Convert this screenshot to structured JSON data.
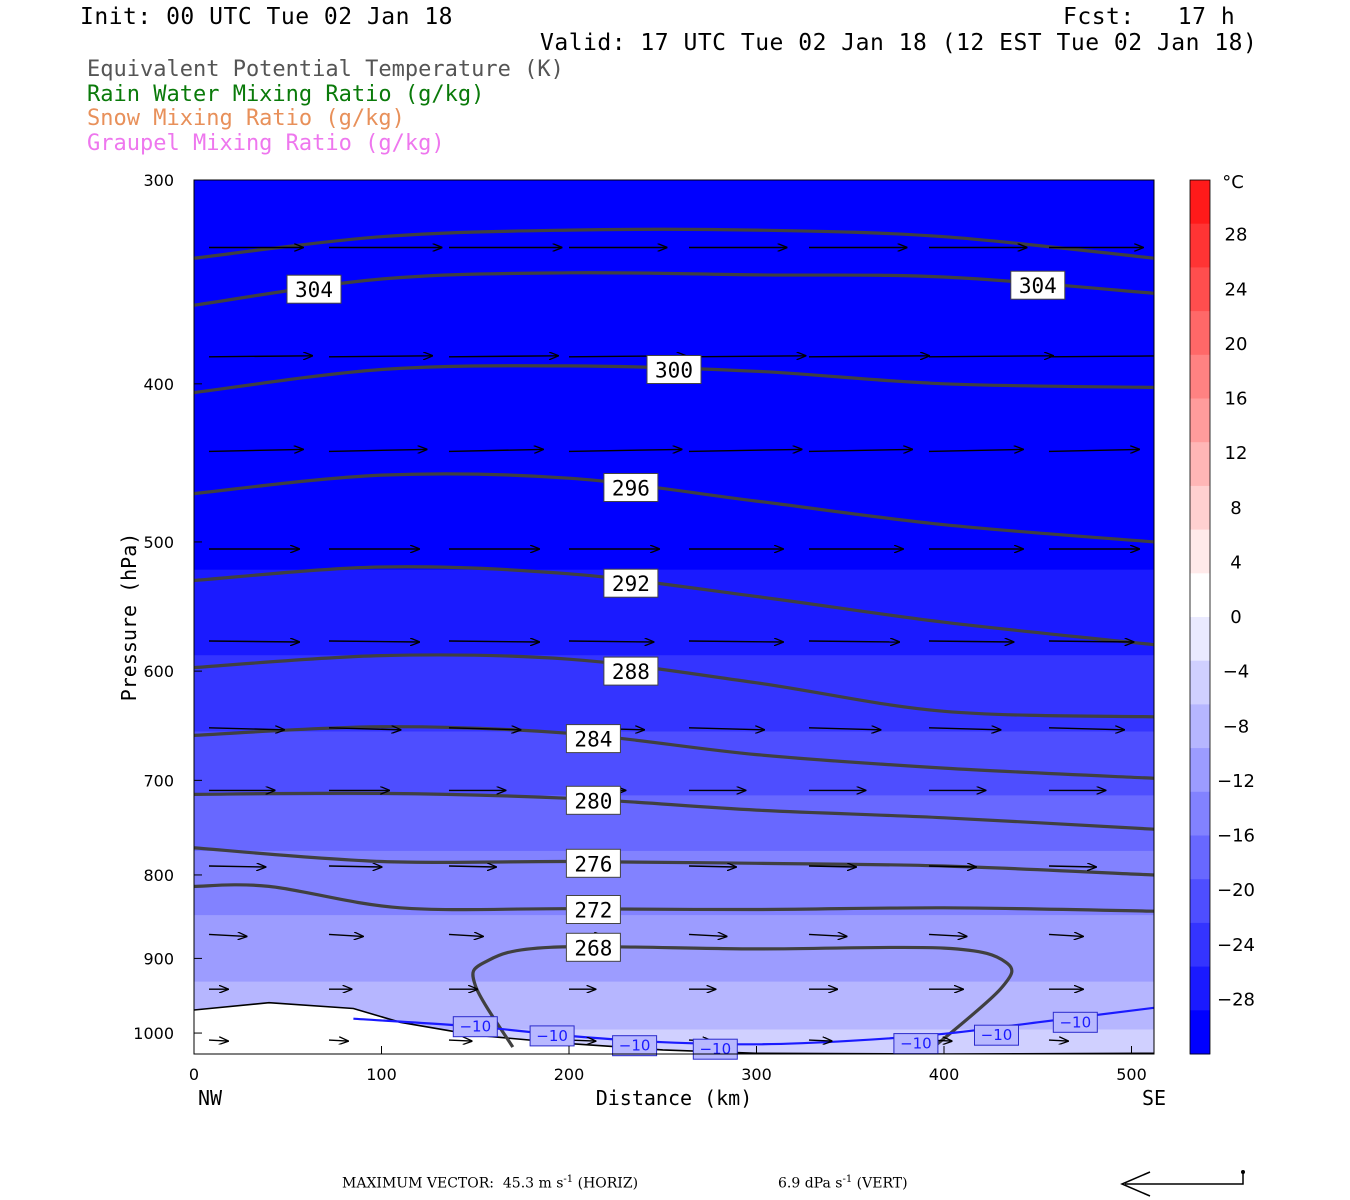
{
  "header": {
    "init": "Init: 00 UTC Tue 02 Jan 18",
    "fcst": "Fcst:   17 h",
    "valid": "Valid: 17 UTC Tue 02 Jan 18 (12 EST Tue 02 Jan 18)"
  },
  "legend": {
    "theta_e": "Equivalent Potential Temperature (K)",
    "rain": "Rain Water Mixing Ratio (g/kg)",
    "snow": "Snow Mixing Ratio (g/kg)",
    "graupel": "Graupel Mixing Ratio (g/kg)"
  },
  "footer": {
    "horiz_prefix": "MAXIMUM VECTOR:  45.3 m s",
    "horiz_sup": "-1",
    "horiz_suffix": " (HORIZ)",
    "vert_prefix": "6.9 dPa s",
    "vert_sup": "-1",
    "vert_suffix": " (VERT)"
  },
  "colors": {
    "theta_e_line": "#404040",
    "isotherm_line": "#1a1aff",
    "terrain_line": "#000000",
    "contour_label_bg": "#ffffff"
  },
  "chart_data": {
    "type": "cross-section",
    "xlabel": "Distance (km)",
    "ylabel": "Pressure (hPa)",
    "xlim": [
      0,
      512
    ],
    "ylim_pressure": [
      1030,
      300
    ],
    "y_scale": "log-pressure",
    "x_ticks": [
      0,
      100,
      200,
      300,
      400,
      500
    ],
    "y_ticks": [
      300,
      400,
      500,
      600,
      700,
      800,
      900,
      1000
    ],
    "x_end_labels": {
      "left": "NW",
      "right": "SE"
    },
    "colorbar": {
      "unit": "°C",
      "ticks": [
        "28",
        "24",
        "20",
        "16",
        "12",
        "8",
        "4",
        "0",
        "−4",
        "−8",
        "−12",
        "−16",
        "−20",
        "−24",
        "−28"
      ],
      "tick_values": [
        28,
        24,
        20,
        16,
        12,
        8,
        4,
        0,
        -4,
        -8,
        -12,
        -16,
        -20,
        -24,
        -28
      ],
      "range": [
        -32,
        32
      ],
      "colors_top_to_bottom": [
        "#ff1a1a",
        "#ff3434",
        "#ff4e4e",
        "#ff6868",
        "#ff8282",
        "#ff9c9c",
        "#ffb6b6",
        "#ffd0d0",
        "#ffeaea",
        "#ffffff",
        "#eaeaff",
        "#d0d0ff",
        "#b6b6ff",
        "#9c9cff",
        "#8282ff",
        "#6868ff",
        "#4e4eff",
        "#3434ff",
        "#1a1aff",
        "#0000ff"
      ]
    },
    "temperature_fill_rows": [
      {
        "p": 300,
        "t": -40
      },
      {
        "p": 450,
        "t": -33
      },
      {
        "p": 520,
        "t": -29
      },
      {
        "p": 600,
        "t": -25
      },
      {
        "p": 680,
        "t": -21
      },
      {
        "p": 750,
        "t": -17
      },
      {
        "p": 820,
        "t": -14
      },
      {
        "p": 900,
        "t": -11
      },
      {
        "p": 960,
        "t": -8
      },
      {
        "p": 1030,
        "t": -5
      }
    ],
    "theta_e_contours": [
      {
        "value": "304",
        "points": [
          [
            0,
            358
          ],
          [
            100,
            345
          ],
          [
            200,
            342
          ],
          [
            300,
            343
          ],
          [
            400,
            344
          ],
          [
            512,
            352
          ]
        ],
        "labels": [
          [
            64,
            350
          ],
          [
            450,
            348
          ]
        ]
      },
      {
        "value": "",
        "points": [
          [
            0,
            335
          ],
          [
            100,
            325
          ],
          [
            200,
            322
          ],
          [
            300,
            322
          ],
          [
            400,
            325
          ],
          [
            512,
            335
          ]
        ],
        "labels": []
      },
      {
        "value": "300",
        "points": [
          [
            0,
            405
          ],
          [
            100,
            392
          ],
          [
            200,
            390
          ],
          [
            300,
            393
          ],
          [
            400,
            400
          ],
          [
            512,
            402
          ]
        ],
        "labels": [
          [
            256,
            392
          ]
        ]
      },
      {
        "value": "296",
        "points": [
          [
            0,
            467
          ],
          [
            100,
            455
          ],
          [
            200,
            457
          ],
          [
            300,
            472
          ],
          [
            400,
            488
          ],
          [
            512,
            500
          ]
        ],
        "labels": [
          [
            233,
            463
          ]
        ]
      },
      {
        "value": "292",
        "points": [
          [
            0,
            528
          ],
          [
            100,
            518
          ],
          [
            200,
            523
          ],
          [
            300,
            540
          ],
          [
            400,
            560
          ],
          [
            512,
            578
          ]
        ],
        "labels": [
          [
            233,
            530
          ]
        ]
      },
      {
        "value": "288",
        "points": [
          [
            0,
            597
          ],
          [
            100,
            587
          ],
          [
            200,
            590
          ],
          [
            300,
            610
          ],
          [
            400,
            635
          ],
          [
            512,
            640
          ]
        ],
        "labels": [
          [
            233,
            600
          ]
        ]
      },
      {
        "value": "284",
        "points": [
          [
            0,
            657
          ],
          [
            100,
            649
          ],
          [
            200,
            655
          ],
          [
            300,
            675
          ],
          [
            400,
            688
          ],
          [
            512,
            698
          ]
        ],
        "labels": [
          [
            213,
            660
          ]
        ]
      },
      {
        "value": "280",
        "points": [
          [
            0,
            714
          ],
          [
            100,
            713
          ],
          [
            200,
            718
          ],
          [
            300,
            730
          ],
          [
            400,
            738
          ],
          [
            512,
            750
          ]
        ],
        "labels": [
          [
            213,
            720
          ]
        ]
      },
      {
        "value": "276",
        "points": [
          [
            0,
            770
          ],
          [
            100,
            785
          ],
          [
            200,
            785
          ],
          [
            300,
            787
          ],
          [
            400,
            790
          ],
          [
            512,
            800
          ]
        ],
        "labels": [
          [
            213,
            787
          ]
        ]
      },
      {
        "value": "272",
        "points": [
          [
            0,
            813
          ],
          [
            40,
            813
          ],
          [
            110,
            838
          ],
          [
            200,
            839
          ],
          [
            300,
            840
          ],
          [
            400,
            838
          ],
          [
            512,
            842
          ]
        ],
        "labels": [
          [
            213,
            840
          ]
        ]
      },
      {
        "value": "268",
        "points": [
          [
            170,
            1020
          ],
          [
            150,
            935
          ],
          [
            155,
            905
          ],
          [
            190,
            886
          ],
          [
            300,
            888
          ],
          [
            400,
            887
          ],
          [
            433,
            905
          ],
          [
            430,
            940
          ],
          [
            390,
            1030
          ]
        ],
        "labels": [
          [
            213,
            886
          ]
        ]
      }
    ],
    "isotherm_minus10": {
      "value": "−10",
      "points": [
        [
          85,
          980
        ],
        [
          150,
          991
        ],
        [
          200,
          1004
        ],
        [
          250,
          1013
        ],
        [
          300,
          1016
        ],
        [
          350,
          1011
        ],
        [
          400,
          1001
        ],
        [
          450,
          985
        ],
        [
          512,
          965
        ]
      ],
      "labels": [
        [
          150,
          991
        ],
        [
          191,
          1004
        ],
        [
          235,
          1018
        ],
        [
          278,
          1023
        ],
        [
          385,
          1015
        ],
        [
          428,
          1003
        ],
        [
          470,
          985
        ]
      ]
    },
    "terrain": [
      [
        0,
        968
      ],
      [
        40,
        958
      ],
      [
        85,
        966
      ],
      [
        110,
        985
      ],
      [
        150,
        1003
      ],
      [
        200,
        1015
      ],
      [
        250,
        1024
      ],
      [
        300,
        1029
      ],
      [
        400,
        1030
      ],
      [
        512,
        1029
      ]
    ],
    "wind_vectors": {
      "columns_km": [
        8,
        72,
        136,
        200,
        264,
        328,
        392,
        456
      ],
      "rows_hpa": [
        330,
        385,
        440,
        505,
        575,
        650,
        710,
        790,
        870,
        940,
        1010
      ],
      "grid_dx_km": [
        [
          50,
          60,
          60,
          52,
          52,
          52,
          52,
          50
        ],
        [
          55,
          55,
          58,
          62,
          62,
          64,
          66,
          65
        ],
        [
          50,
          52,
          50,
          60,
          60,
          55,
          50,
          48
        ],
        [
          48,
          48,
          48,
          48,
          50,
          50,
          50,
          48
        ],
        [
          48,
          48,
          48,
          45,
          50,
          48,
          45,
          45
        ],
        [
          40,
          38,
          38,
          40,
          40,
          38,
          38,
          40
        ],
        [
          35,
          32,
          30,
          30,
          30,
          30,
          30,
          30
        ],
        [
          30,
          28,
          25,
          25,
          25,
          25,
          25,
          25
        ],
        [
          20,
          18,
          18,
          18,
          20,
          20,
          20,
          18
        ],
        [
          10,
          12,
          15,
          14,
          14,
          15,
          18,
          18
        ],
        [
          10,
          10,
          12,
          14,
          12,
          12,
          12,
          10
        ]
      ]
    }
  }
}
